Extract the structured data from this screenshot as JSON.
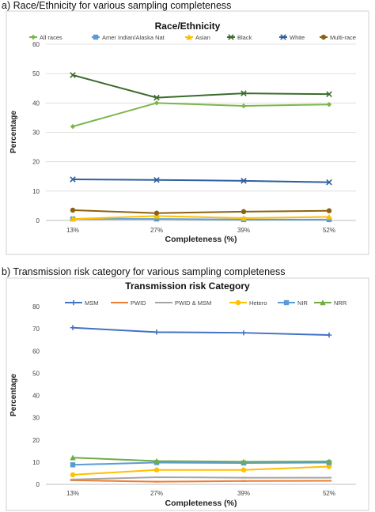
{
  "headings": {
    "a": "a)   Race/Ethnicity for various sampling completeness",
    "b": "b)   Transmission risk category for various sampling completeness"
  },
  "chart_data": [
    {
      "type": "line",
      "title": "Race/Ethnicity",
      "xlabel": "Completeness (%)",
      "ylabel": "Percentage",
      "categories": [
        "13%",
        "27%",
        "39%",
        "52%"
      ],
      "ylim": [
        0,
        60
      ],
      "yticks": [
        0,
        10,
        20,
        30,
        40,
        50,
        60
      ],
      "grid": true,
      "legend": "top",
      "series": [
        {
          "name": "All races",
          "color": "#7ab648",
          "marker": "diamond",
          "values": [
            32.0,
            40.0,
            39.0,
            39.5
          ]
        },
        {
          "name": "Amer Indian/Alaska Nat",
          "color": "#5b9bd5",
          "marker": "square",
          "values": [
            0.5,
            0.5,
            0.3,
            0.3
          ]
        },
        {
          "name": "Asian",
          "color": "#ffc000",
          "marker": "triangle",
          "values": [
            0.5,
            1.5,
            0.8,
            1.2
          ]
        },
        {
          "name": "Black",
          "color": "#3a6b2a",
          "marker": "x",
          "values": [
            49.5,
            41.8,
            43.3,
            43.0
          ]
        },
        {
          "name": "White",
          "color": "#2e5f9e",
          "marker": "x",
          "values": [
            14.0,
            13.8,
            13.5,
            13.0
          ]
        },
        {
          "name": "Multi-race",
          "color": "#8b6310",
          "marker": "circle",
          "values": [
            3.5,
            2.5,
            3.0,
            3.3
          ]
        }
      ]
    },
    {
      "type": "line",
      "title": "Transmission risk Category",
      "xlabel": "Completeness (%)",
      "ylabel": "Percentage",
      "categories": [
        "13%",
        "27%",
        "39%",
        "52%"
      ],
      "ylim": [
        0,
        80
      ],
      "yticks": [
        0,
        10,
        20,
        30,
        40,
        50,
        60,
        70,
        80
      ],
      "grid": false,
      "legend": "top",
      "series": [
        {
          "name": "MSM",
          "color": "#4472c4",
          "marker": "plus",
          "values": [
            70.5,
            68.5,
            68.2,
            67.2
          ]
        },
        {
          "name": "PWID",
          "color": "#ed7d31",
          "marker": "dash",
          "values": [
            1.8,
            1.2,
            1.5,
            1.6
          ]
        },
        {
          "name": "PWID & MSM",
          "color": "#a5a5a5",
          "marker": "dash",
          "values": [
            2.2,
            3.2,
            3.0,
            3.0
          ]
        },
        {
          "name": "Hetero",
          "color": "#ffc000",
          "marker": "circle",
          "values": [
            4.3,
            6.5,
            6.5,
            8.0
          ]
        },
        {
          "name": "NIR",
          "color": "#5b9bd5",
          "marker": "square",
          "values": [
            8.8,
            9.8,
            9.6,
            9.8
          ]
        },
        {
          "name": "NRR",
          "color": "#70ad47",
          "marker": "triangle",
          "values": [
            12.0,
            10.5,
            10.2,
            10.3
          ]
        }
      ]
    }
  ]
}
